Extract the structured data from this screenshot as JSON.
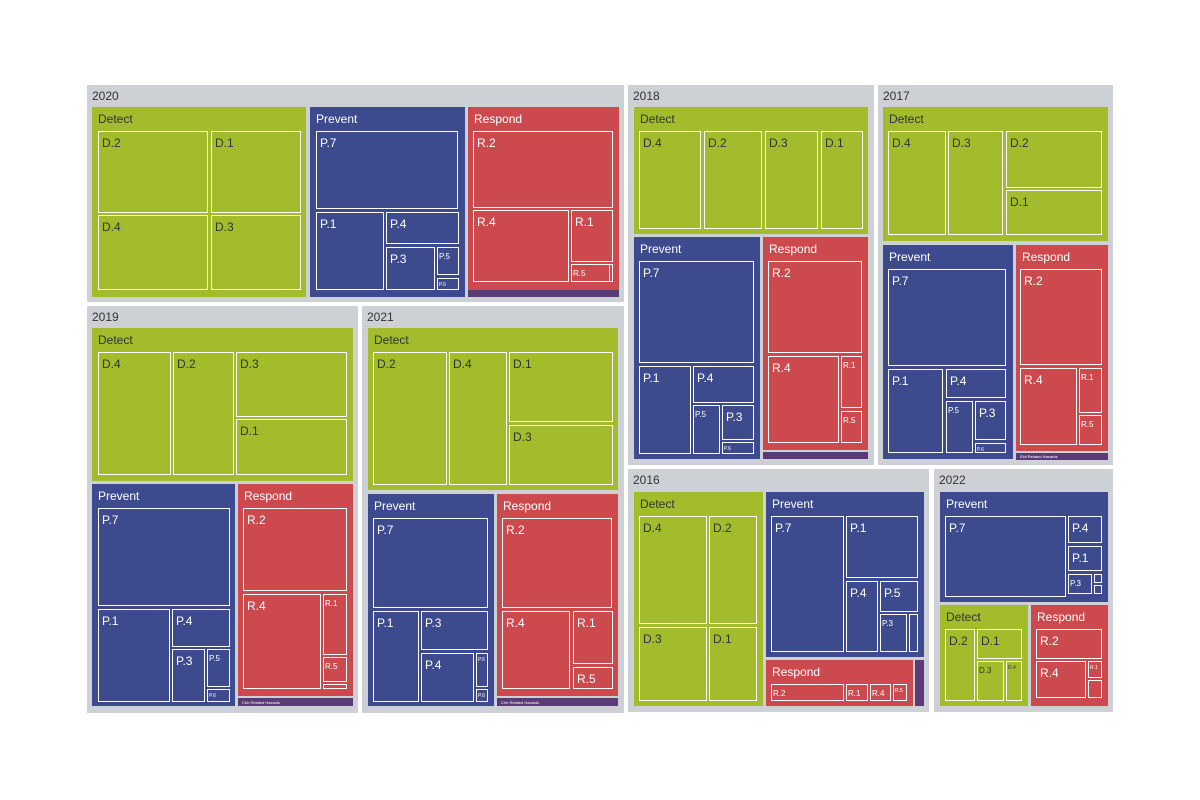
{
  "colors": {
    "year_bg": "#cdd0d5",
    "detect": "#a2bc2c",
    "prevent": "#3d4a8e",
    "respond": "#cc4a4e",
    "other": "#5b3a78",
    "year_text": "#333333",
    "group_text_dark": "#333333",
    "group_text_light": "#ffffff",
    "leaf_border": "#ffffff"
  },
  "chart_data": {
    "type": "treemap",
    "title": "",
    "years": [
      {
        "name": "2020",
        "groups": [
          {
            "name": "Detect",
            "color": "detect",
            "leaves": [
              {
                "name": "D.2"
              },
              {
                "name": "D.1"
              },
              {
                "name": "D.4"
              },
              {
                "name": "D.3"
              }
            ]
          },
          {
            "name": "Prevent",
            "color": "prevent",
            "leaves": [
              {
                "name": "P.7"
              },
              {
                "name": "P.1"
              },
              {
                "name": "P.4"
              },
              {
                "name": "P.3"
              },
              {
                "name": "P.5"
              },
              {
                "name": "P.6"
              }
            ]
          },
          {
            "name": "Respond",
            "color": "respond",
            "leaves": [
              {
                "name": "R.2"
              },
              {
                "name": "R.4"
              },
              {
                "name": "R.1"
              },
              {
                "name": "R.5"
              },
              {
                "name": ""
              }
            ]
          },
          {
            "name": "",
            "color": "other",
            "leaves": []
          }
        ]
      },
      {
        "name": "2018",
        "groups": [
          {
            "name": "Detect",
            "color": "detect",
            "leaves": [
              {
                "name": "D.4"
              },
              {
                "name": "D.2"
              },
              {
                "name": "D.3"
              },
              {
                "name": "D.1"
              }
            ]
          },
          {
            "name": "Prevent",
            "color": "prevent",
            "leaves": [
              {
                "name": "P.7"
              },
              {
                "name": "P.1"
              },
              {
                "name": "P.4"
              },
              {
                "name": "P.5"
              },
              {
                "name": "P.3"
              },
              {
                "name": "P.6"
              }
            ]
          },
          {
            "name": "Respond",
            "color": "respond",
            "leaves": [
              {
                "name": "R.2"
              },
              {
                "name": "R.4"
              },
              {
                "name": "R.1"
              },
              {
                "name": "R.5"
              }
            ]
          },
          {
            "name": "",
            "color": "other",
            "leaves": []
          }
        ]
      },
      {
        "name": "2017",
        "groups": [
          {
            "name": "Detect",
            "color": "detect",
            "leaves": [
              {
                "name": "D.4"
              },
              {
                "name": "D.3"
              },
              {
                "name": "D.2"
              },
              {
                "name": "D.1"
              }
            ]
          },
          {
            "name": "Prevent",
            "color": "prevent",
            "leaves": [
              {
                "name": "P.7"
              },
              {
                "name": "P.1"
              },
              {
                "name": "P.4"
              },
              {
                "name": "P.5"
              },
              {
                "name": "P.3"
              },
              {
                "name": "P.6"
              }
            ]
          },
          {
            "name": "Respond",
            "color": "respond",
            "leaves": [
              {
                "name": "R.2"
              },
              {
                "name": "R.4"
              },
              {
                "name": "R.1"
              },
              {
                "name": "R.5"
              }
            ]
          },
          {
            "name": "Ebil Related Hazards",
            "color": "other",
            "leaves": []
          }
        ]
      },
      {
        "name": "2019",
        "groups": [
          {
            "name": "Detect",
            "color": "detect",
            "leaves": [
              {
                "name": "D.4"
              },
              {
                "name": "D.2"
              },
              {
                "name": "D.3"
              },
              {
                "name": "D.1"
              }
            ]
          },
          {
            "name": "Prevent",
            "color": "prevent",
            "leaves": [
              {
                "name": "P.7"
              },
              {
                "name": "P.1"
              },
              {
                "name": "P.4"
              },
              {
                "name": "P.3"
              },
              {
                "name": "P.5"
              },
              {
                "name": "P.6"
              }
            ]
          },
          {
            "name": "Respond",
            "color": "respond",
            "leaves": [
              {
                "name": "R.2"
              },
              {
                "name": "R.4"
              },
              {
                "name": "R.1"
              },
              {
                "name": "R.5"
              },
              {
                "name": ""
              }
            ]
          },
          {
            "name": "Chh Related Hazards",
            "color": "other",
            "leaves": []
          }
        ]
      },
      {
        "name": "2021",
        "groups": [
          {
            "name": "Detect",
            "color": "detect",
            "leaves": [
              {
                "name": "D.2"
              },
              {
                "name": "D.4"
              },
              {
                "name": "D.1"
              },
              {
                "name": "D.3"
              }
            ]
          },
          {
            "name": "Prevent",
            "color": "prevent",
            "leaves": [
              {
                "name": "P.7"
              },
              {
                "name": "P.1"
              },
              {
                "name": "P.3"
              },
              {
                "name": "P.4"
              },
              {
                "name": "P.5"
              },
              {
                "name": "P.6"
              }
            ]
          },
          {
            "name": "Respond",
            "color": "respond",
            "leaves": [
              {
                "name": "R.2"
              },
              {
                "name": "R.4"
              },
              {
                "name": "R.1"
              },
              {
                "name": "R.5"
              }
            ]
          },
          {
            "name": "Chh Related Hazards",
            "color": "other",
            "leaves": []
          }
        ]
      },
      {
        "name": "2016",
        "groups": [
          {
            "name": "Detect",
            "color": "detect",
            "leaves": [
              {
                "name": "D.4"
              },
              {
                "name": "D.2"
              },
              {
                "name": "D.3"
              },
              {
                "name": "D.1"
              }
            ]
          },
          {
            "name": "Prevent",
            "color": "prevent",
            "leaves": [
              {
                "name": "P.7"
              },
              {
                "name": "P.1"
              },
              {
                "name": "P.4"
              },
              {
                "name": "P.5"
              },
              {
                "name": "P.3"
              },
              {
                "name": ""
              }
            ]
          },
          {
            "name": "Respond",
            "color": "respond",
            "leaves": [
              {
                "name": "R.2"
              },
              {
                "name": "R.1"
              },
              {
                "name": "R.4"
              },
              {
                "name": "R.5"
              }
            ]
          },
          {
            "name": "",
            "color": "other",
            "leaves": []
          }
        ]
      },
      {
        "name": "2022",
        "groups": [
          {
            "name": "Prevent",
            "color": "prevent",
            "leaves": [
              {
                "name": "P.7"
              },
              {
                "name": "P.4"
              },
              {
                "name": "P.1"
              },
              {
                "name": "P.3"
              },
              {
                "name": ""
              },
              {
                "name": ""
              }
            ]
          },
          {
            "name": "Detect",
            "color": "detect",
            "leaves": [
              {
                "name": "D.2"
              },
              {
                "name": "D.1"
              },
              {
                "name": "D.3"
              },
              {
                "name": "D.4"
              }
            ]
          },
          {
            "name": "Respond",
            "color": "respond",
            "leaves": [
              {
                "name": "R.2"
              },
              {
                "name": "R.4"
              },
              {
                "name": "R.1"
              },
              {
                "name": ""
              }
            ]
          }
        ]
      }
    ]
  }
}
